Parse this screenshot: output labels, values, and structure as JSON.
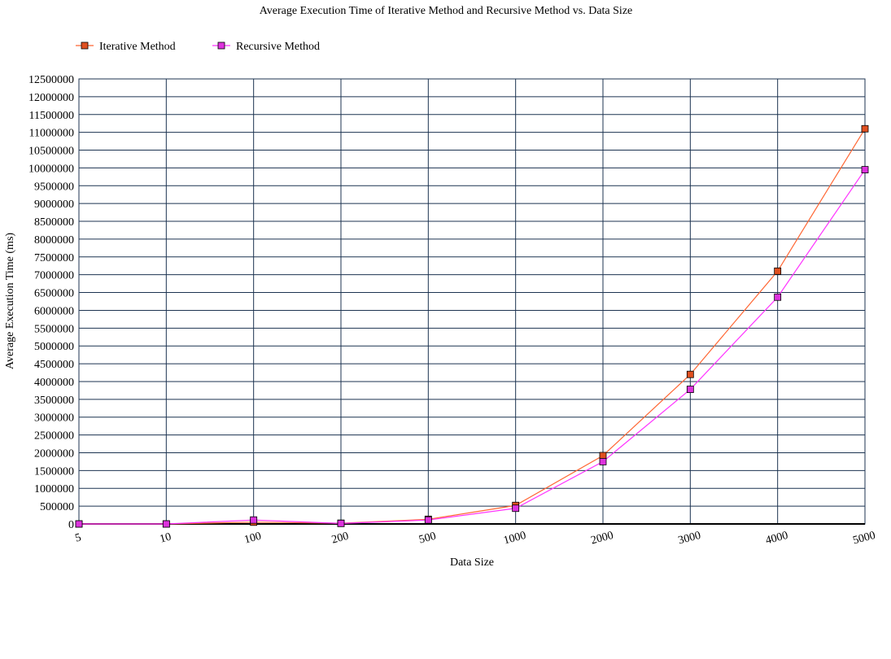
{
  "chart_data": {
    "type": "line",
    "title": "Average Execution Time of Iterative Method and Recursive Method vs. Data Size",
    "xlabel": "Data Size",
    "ylabel": "Average Execution Time (ms)",
    "categories": [
      "5",
      "10",
      "100",
      "200",
      "500",
      "1000",
      "2000",
      "3000",
      "4000",
      "5000"
    ],
    "ylim": [
      0,
      12500000
    ],
    "ytick_step": 500000,
    "grid": true,
    "legend_position": "top-left",
    "series": [
      {
        "name": "Iterative Method",
        "color": "#ff6633",
        "marker_fill": "#e05020",
        "values": [
          0,
          0,
          50000,
          20000,
          130000,
          520000,
          1920000,
          4200000,
          7100000,
          11100000
        ]
      },
      {
        "name": "Recursive Method",
        "color": "#ff33ff",
        "marker_fill": "#dd33dd",
        "values": [
          0,
          0,
          110000,
          15000,
          110000,
          440000,
          1750000,
          3780000,
          6370000,
          9950000
        ]
      }
    ]
  }
}
